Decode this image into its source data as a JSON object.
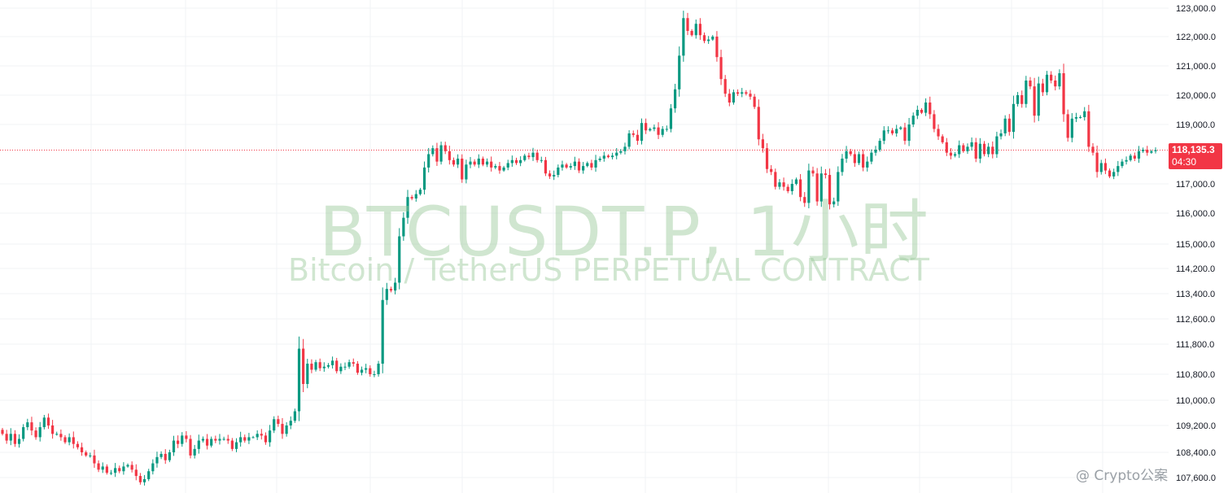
{
  "chart_data": {
    "type": "candlestick",
    "symbol": "BTCUSDT.P, 1小时",
    "description": "Bitcoin / TetherUS PERPETUAL CONTRACT",
    "y_tick_labels": [
      "123,000.0",
      "122,000.0",
      "121,000.0",
      "120,000.0",
      "119,000.0",
      "117,000.0",
      "116,000.0",
      "115,000.0",
      "114,200.0",
      "113,400.0",
      "112,600.0",
      "111,800.0",
      "110,800.0",
      "110,000.0",
      "109,200.0",
      "108,400.0",
      "107,600.0"
    ],
    "last_price": "118,135.3",
    "countdown": "04:30",
    "up_color": "#089981",
    "down_color": "#f23645",
    "grid": true,
    "closes": [
      108950,
      108750,
      108950,
      108650,
      108800,
      109150,
      109300,
      109050,
      108850,
      109150,
      109450,
      109200,
      108950,
      108950,
      108850,
      108700,
      108850,
      108650,
      108550,
      108400,
      108300,
      108300,
      108050,
      107850,
      107950,
      107750,
      107750,
      107900,
      107800,
      107950,
      108000,
      107850,
      107650,
      107450,
      107550,
      107800,
      108050,
      108250,
      108350,
      108150,
      108400,
      108750,
      108650,
      108900,
      108800,
      108300,
      108500,
      108750,
      108800,
      108600,
      108800,
      108750,
      108800,
      108800,
      108750,
      108500,
      108700,
      108850,
      108750,
      108850,
      108850,
      108950,
      108900,
      108700,
      109050,
      109400,
      109250,
      108950,
      109200,
      109350,
      109650,
      111650,
      110500,
      111150,
      110950,
      111200,
      111000,
      111050,
      111100,
      111250,
      110900,
      111050,
      111050,
      111200,
      111150,
      110850,
      110950,
      111000,
      110800,
      110800,
      111150,
      113200,
      113550,
      113500,
      113750,
      115250,
      115850,
      116550,
      116500,
      116650,
      116800,
      117550,
      118000,
      118200,
      117750,
      118300,
      118100,
      117800,
      117650,
      117850,
      117150,
      117650,
      117750,
      117650,
      117850,
      117650,
      117750,
      117550,
      117600,
      117450,
      117550,
      117700,
      117800,
      117700,
      117800,
      117950,
      117900,
      118050,
      117800,
      117800,
      117350,
      117250,
      117300,
      117550,
      117650,
      117550,
      117600,
      117750,
      117450,
      117600,
      117700,
      117550,
      117800,
      117850,
      117950,
      117900,
      117950,
      118050,
      118100,
      118250,
      118700,
      118650,
      118450,
      119050,
      118800,
      118850,
      118900,
      118650,
      118850,
      118850,
      119550,
      120200,
      121350,
      122650,
      122200,
      122050,
      122450,
      122050,
      121850,
      121900,
      122000,
      121300,
      120550,
      120050,
      119750,
      120100,
      120050,
      120100,
      120050,
      119950,
      119600,
      118500,
      118200,
      117500,
      117400,
      116900,
      117050,
      116900,
      116750,
      117000,
      117150,
      116550,
      116350,
      117450,
      117350,
      116400,
      117350,
      117300,
      116300,
      116400,
      117400,
      117850,
      118100,
      118000,
      117700,
      118000,
      117550,
      117750,
      118050,
      118150,
      118450,
      118800,
      118800,
      118700,
      118850,
      118900,
      118450,
      119000,
      119300,
      119500,
      119400,
      119750,
      119350,
      118850,
      118600,
      118400,
      118050,
      117950,
      118000,
      118300,
      118100,
      118250,
      118400,
      117850,
      118350,
      118000,
      118250,
      118000,
      118600,
      118700,
      119200,
      118750,
      119700,
      120000,
      119700,
      120500,
      120300,
      119300,
      120400,
      120100,
      120700,
      120500,
      120300,
      120750,
      119350,
      118550,
      119200,
      119250,
      119250,
      119450,
      118250,
      118050,
      117400,
      117700,
      117450,
      117250,
      117400,
      117600,
      117750,
      117800,
      117950,
      117850,
      118100,
      118150,
      118050,
      118100,
      118135
    ]
  },
  "credit": "@ Crypto公案"
}
